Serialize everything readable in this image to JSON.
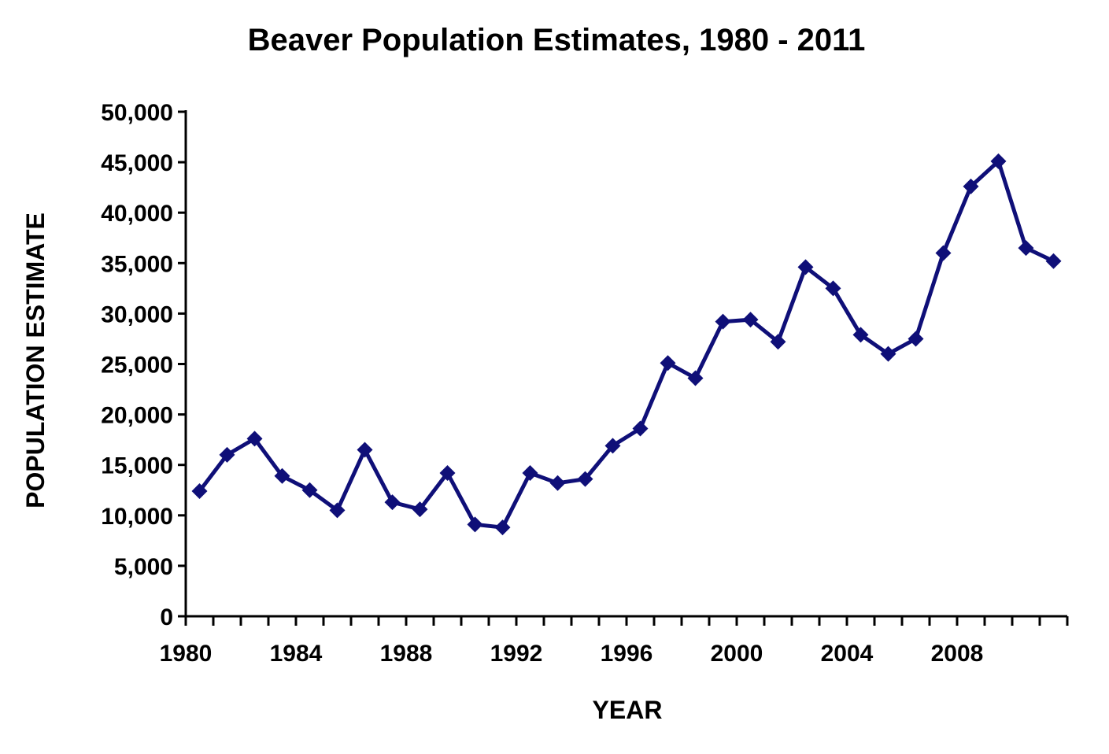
{
  "chart_data": {
    "type": "line",
    "title": "Beaver Population Estimates, 1980 - 2011",
    "xlabel": "YEAR",
    "ylabel": "POPULATION ESTIMATE",
    "xlim": [
      1980,
      2012
    ],
    "ylim": [
      0,
      50000
    ],
    "x_ticks": [
      1980,
      1984,
      1988,
      1992,
      1996,
      2000,
      2004,
      2008
    ],
    "x_tick_labels": [
      "1980",
      "1984",
      "1988",
      "1992",
      "1996",
      "2000",
      "2004",
      "2008"
    ],
    "y_ticks": [
      0,
      5000,
      10000,
      15000,
      20000,
      25000,
      30000,
      35000,
      40000,
      45000,
      50000
    ],
    "y_tick_labels": [
      "0",
      "5,000",
      "10,000",
      "15,000",
      "20,000",
      "25,000",
      "30,000",
      "35,000",
      "40,000",
      "45,000",
      "50,000"
    ],
    "grid": false,
    "legend": "none",
    "series": [
      {
        "name": "Population Estimate",
        "color": "#0f0f78",
        "marker": "diamond",
        "x": [
          1980,
          1981,
          1982,
          1983,
          1984,
          1985,
          1986,
          1987,
          1988,
          1989,
          1990,
          1991,
          1992,
          1993,
          1994,
          1995,
          1996,
          1997,
          1998,
          1999,
          2000,
          2001,
          2002,
          2003,
          2004,
          2005,
          2006,
          2007,
          2008,
          2009,
          2010,
          2011
        ],
        "values": [
          12400,
          16000,
          17600,
          13900,
          12500,
          10500,
          16500,
          11300,
          10600,
          14200,
          9100,
          8800,
          14200,
          13200,
          13600,
          16900,
          18600,
          25100,
          23600,
          29200,
          29400,
          27200,
          34600,
          32500,
          27900,
          26000,
          27500,
          36000,
          42600,
          45100,
          36500,
          35200
        ]
      }
    ]
  }
}
